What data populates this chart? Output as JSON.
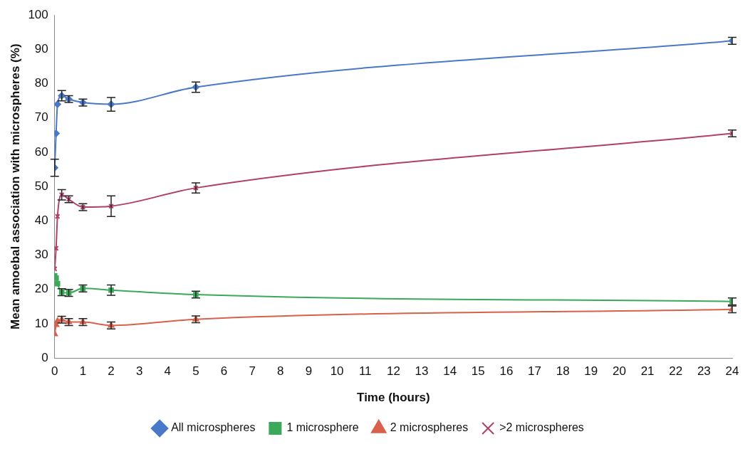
{
  "chart_data": {
    "type": "line",
    "xlabel": "Time (hours)",
    "ylabel": "Mean amoebal association with microspheres (%)",
    "x": [
      0,
      0.05,
      0.1,
      0.25,
      0.5,
      1,
      2,
      5,
      24
    ],
    "xlim": [
      0,
      24
    ],
    "xticks": [
      0,
      1,
      2,
      3,
      4,
      5,
      6,
      7,
      8,
      9,
      10,
      11,
      12,
      13,
      14,
      15,
      16,
      17,
      18,
      19,
      20,
      21,
      22,
      23,
      24
    ],
    "ylim": [
      0,
      100
    ],
    "yticks": [
      0,
      10,
      20,
      30,
      40,
      50,
      60,
      70,
      80,
      90,
      100
    ],
    "grid": false,
    "legend": "bottom",
    "series": [
      {
        "name": "All microspheres",
        "color": "#4a78c8",
        "marker": "diamond",
        "values": [
          55.5,
          65.5,
          74,
          76.5,
          75.5,
          74.5,
          74,
          79,
          92.5
        ],
        "errors": [
          2.5,
          null,
          null,
          1.5,
          1,
          1,
          2,
          1.5,
          1
        ]
      },
      {
        "name": "1 microsphere",
        "color": "#3aaa5a",
        "marker": "square",
        "values": [
          24,
          23.3,
          21.7,
          19.2,
          19,
          20.3,
          19.8,
          18.5,
          16.5
        ],
        "errors": [
          null,
          null,
          null,
          1,
          1,
          1,
          1.5,
          1,
          1
        ]
      },
      {
        "name": "2 microspheres",
        "color": "#d9604a",
        "marker": "triangle",
        "values": [
          7,
          9.7,
          10.8,
          11.2,
          10.5,
          10.5,
          9.5,
          11.3,
          14.2
        ],
        "errors": [
          null,
          null,
          null,
          1,
          1,
          1,
          1,
          1,
          1
        ]
      },
      {
        "name": ">2 microspheres",
        "color": "#b0406a",
        "marker": "cross",
        "values": [
          26,
          32,
          41.3,
          47.6,
          46.3,
          44,
          44.3,
          49.6,
          65.5
        ],
        "errors": [
          null,
          null,
          null,
          1.5,
          1,
          1,
          3,
          1.5,
          1
        ]
      }
    ]
  }
}
